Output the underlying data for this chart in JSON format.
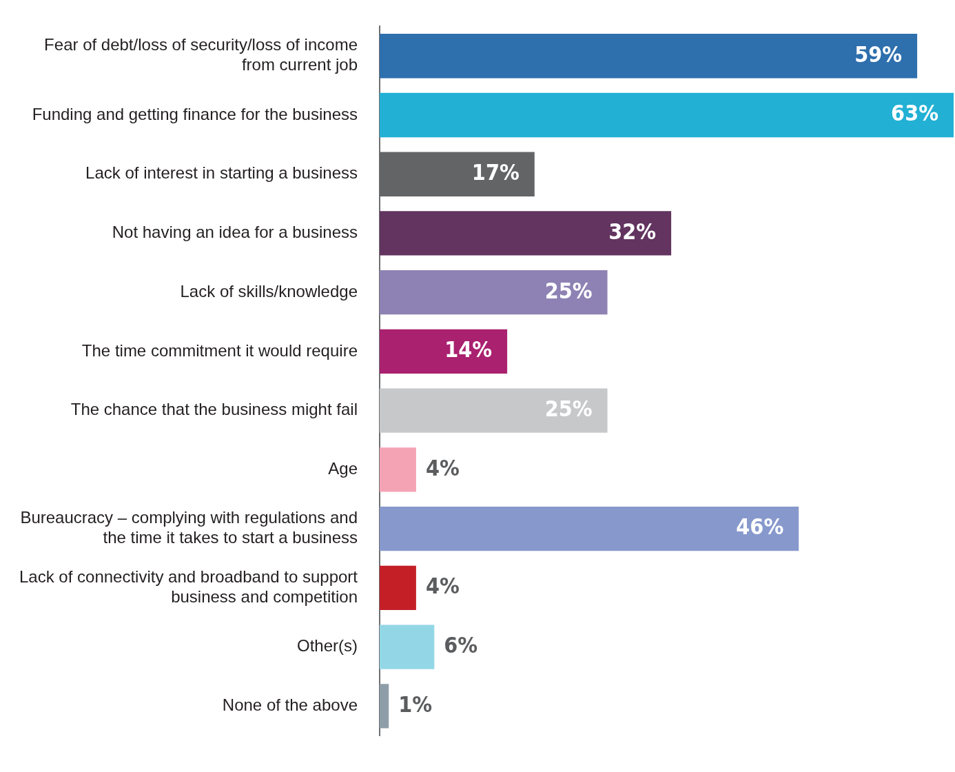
{
  "chart_data": {
    "type": "bar",
    "orientation": "horizontal",
    "categories": [
      "Fear of debt/loss of security/loss of income from current job",
      "Funding and getting finance for the business",
      "Lack of interest in starting a business",
      "Not having an idea for a business",
      "Lack of skills/knowledge",
      "The time commitment it would require",
      "The chance that the business might fail",
      "Age",
      "Bureaucracy – complying with regulations and the time it takes to start a business",
      "Lack of connectivity and broadband to support business and competition",
      "Other(s)",
      "None of the above"
    ],
    "values": [
      59,
      63,
      17,
      32,
      25,
      14,
      25,
      4,
      46,
      4,
      6,
      1
    ],
    "colors": [
      "#2e6fad",
      "#22b0d4",
      "#636466",
      "#62345f",
      "#8e82b4",
      "#a9216f",
      "#c7c8ca",
      "#f4a3b5",
      "#8799cc",
      "#c41f27",
      "#93d7e6",
      "#8e9ea9"
    ],
    "value_labels": [
      "59%",
      "63%",
      "17%",
      "32%",
      "25%",
      "14%",
      "25%",
      "4%",
      "46%",
      "4%",
      "6%",
      "1%"
    ],
    "xlim": [
      0,
      63
    ],
    "tick_labels": "y"
  }
}
